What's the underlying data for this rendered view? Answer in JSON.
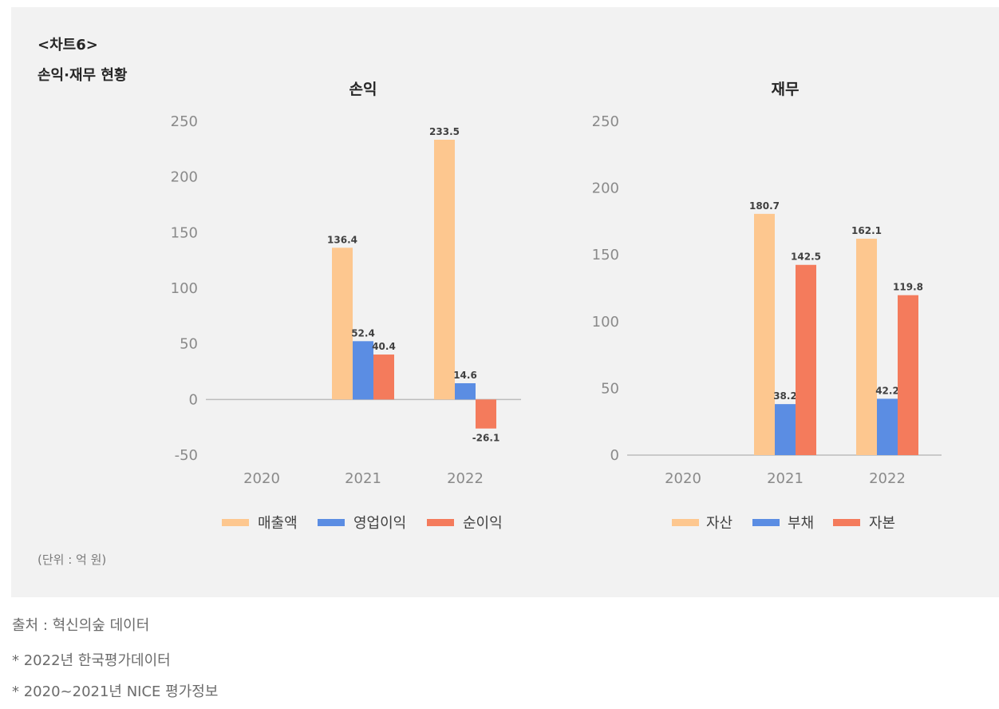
{
  "header": {
    "label": "<차트6>",
    "title": "손익·재무 현황"
  },
  "unit_note": "(단위 : 억 원)",
  "footer": {
    "source": "출처 : 혁신의숲 데이터",
    "notes": [
      "* 2022년 한국평가데이터",
      "* 2020~2021년 NICE 평가정보"
    ]
  },
  "colors": {
    "series1": "#fdc78f",
    "series2": "#5b8de3",
    "series3": "#f47b5c"
  },
  "chart_data": [
    {
      "type": "bar",
      "title": "손익",
      "categories": [
        "2020",
        "2021",
        "2022"
      ],
      "series": [
        {
          "name": "매출액",
          "values": [
            null,
            136.4,
            233.5
          ]
        },
        {
          "name": "영업이익",
          "values": [
            null,
            52.4,
            14.6
          ]
        },
        {
          "name": "순이익",
          "values": [
            null,
            40.4,
            -26.1
          ]
        }
      ],
      "ylim": [
        -50,
        250
      ],
      "yticks": [
        250,
        200,
        150,
        100,
        50,
        0,
        -50
      ],
      "legend": "bottom",
      "grid": false
    },
    {
      "type": "bar",
      "title": "재무",
      "categories": [
        "2020",
        "2021",
        "2022"
      ],
      "series": [
        {
          "name": "자산",
          "values": [
            null,
            180.7,
            162.1
          ]
        },
        {
          "name": "부채",
          "values": [
            null,
            38.2,
            42.2
          ]
        },
        {
          "name": "자본",
          "values": [
            null,
            142.5,
            119.8
          ]
        }
      ],
      "ylim": [
        0,
        250
      ],
      "yticks": [
        250,
        200,
        150,
        100,
        50,
        0
      ],
      "legend": "bottom",
      "grid": false
    }
  ]
}
